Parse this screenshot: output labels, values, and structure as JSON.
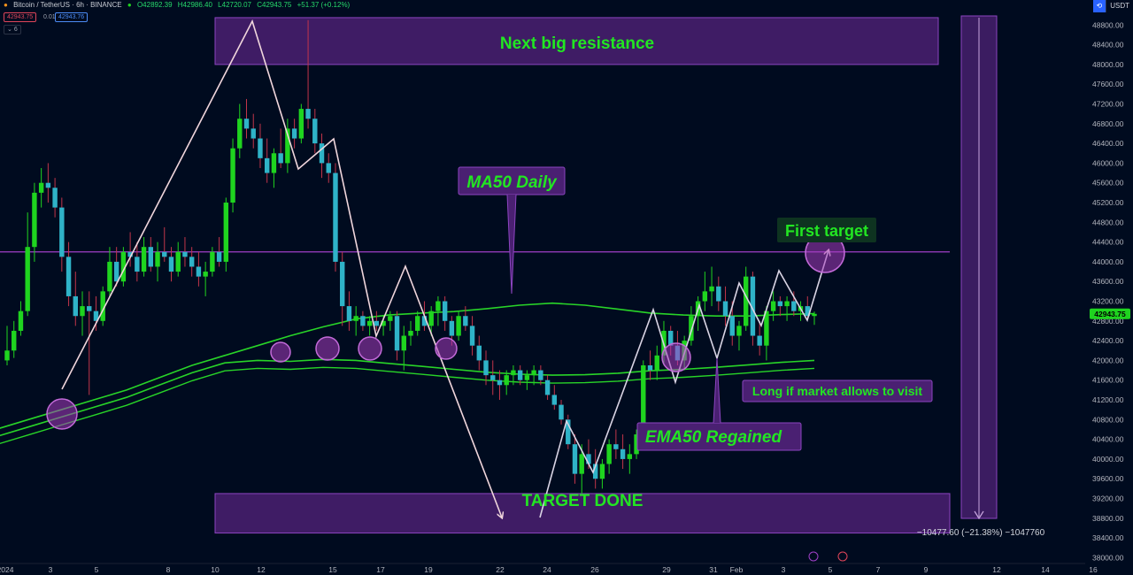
{
  "header": {
    "symbol": "Bitcoin / TetherUS · 6h · BINANCE",
    "ohlc": [
      "O42892.39",
      "H42986.40",
      "L42720.07",
      "C42943.75",
      "+51.37 (+0.12%)"
    ],
    "sell_price": "42943.75",
    "spread": "0.01",
    "buy_price": "42943.76",
    "indicator_count": "6"
  },
  "top_right": {
    "currency": "USDT"
  },
  "colors": {
    "background": "#000b1f",
    "bull_candle": "#1fd41f",
    "bear_candle": "#2fb3c8",
    "box_fill": "#4a2072",
    "box_border": "#8c45c0",
    "label_green": "#22e622",
    "ma_line": "#28d428",
    "drawing_line": "#f0d6dc",
    "circle": "#a63dbe"
  },
  "annotations": {
    "next_resistance": "Next big resistance",
    "target_done": "TARGET DONE",
    "ma50_daily": "MA50 Daily",
    "first_target": "First target",
    "long_visit": "Long if market allows to visit",
    "ema50_regained": "EMA50 Regained",
    "measure": "−10477.60 (−21.38%) −1047760"
  },
  "chart_data": {
    "type": "candlestick",
    "title": "Bitcoin / TetherUS · 6h · BINANCE",
    "price_axis": {
      "ticks": [
        48800,
        48400,
        48000,
        47600,
        47200,
        46800,
        46400,
        46000,
        45600,
        45200,
        44800,
        44400,
        44000,
        43600,
        43200,
        42800,
        42400,
        42000,
        41600,
        41200,
        40800,
        40400,
        40000,
        39600,
        39200,
        38800,
        38400,
        38000
      ],
      "range": [
        37900,
        49200
      ],
      "current_price": 42943.75
    },
    "time_axis": {
      "labels": [
        "2024",
        "3",
        "5",
        "8",
        "10",
        "12",
        "15",
        "17",
        "19",
        "22",
        "24",
        "26",
        "29",
        "31",
        "Feb",
        "3",
        "5",
        "7",
        "9",
        "12",
        "14",
        "16"
      ]
    },
    "last_close": 42943.75,
    "horizontal_level": 44200,
    "resistance_zone": [
      48000,
      48950
    ],
    "target_zone": [
      38500,
      39300
    ],
    "candles_ohlc": [
      [
        42000,
        42700,
        41900,
        42200
      ],
      [
        42200,
        42800,
        42050,
        42600
      ],
      [
        42600,
        43200,
        42500,
        43000
      ],
      [
        43000,
        45000,
        42900,
        44300
      ],
      [
        44300,
        45600,
        44000,
        45400
      ],
      [
        45400,
        45900,
        45100,
        45600
      ],
      [
        45600,
        46000,
        45200,
        45500
      ],
      [
        45500,
        45700,
        44900,
        45100
      ],
      [
        45100,
        45300,
        43800,
        44100
      ],
      [
        44100,
        44400,
        43100,
        43300
      ],
      [
        43300,
        43800,
        42700,
        42900
      ],
      [
        42900,
        43400,
        42500,
        43100
      ],
      [
        43100,
        43400,
        41300,
        43000
      ],
      [
        43000,
        43300,
        42600,
        42800
      ],
      [
        42800,
        43500,
        42700,
        43400
      ],
      [
        43400,
        44300,
        43300,
        44000
      ],
      [
        44000,
        44300,
        43500,
        43600
      ],
      [
        43600,
        44300,
        43500,
        44200
      ],
      [
        44200,
        44600,
        43900,
        44100
      ],
      [
        44100,
        44400,
        43600,
        43800
      ],
      [
        43800,
        44500,
        43700,
        44300
      ],
      [
        44300,
        44500,
        43800,
        43900
      ],
      [
        43900,
        44400,
        43600,
        44200
      ],
      [
        44200,
        44700,
        44000,
        44100
      ],
      [
        44100,
        44300,
        43600,
        43800
      ],
      [
        43800,
        44400,
        43700,
        44200
      ],
      [
        44200,
        44500,
        43900,
        44100
      ],
      [
        44100,
        44300,
        43700,
        43900
      ],
      [
        43900,
        44200,
        43500,
        43700
      ],
      [
        43700,
        44000,
        43300,
        43800
      ],
      [
        43800,
        44300,
        43700,
        44200
      ],
      [
        44200,
        44500,
        43900,
        44000
      ],
      [
        44000,
        45300,
        43800,
        45200
      ],
      [
        45200,
        46500,
        45000,
        46300
      ],
      [
        46300,
        47200,
        46100,
        46900
      ],
      [
        46900,
        47300,
        46500,
        46700
      ],
      [
        46700,
        47000,
        46300,
        46500
      ],
      [
        46500,
        46800,
        45900,
        46100
      ],
      [
        46100,
        46500,
        45600,
        45800
      ],
      [
        45800,
        46300,
        45500,
        46200
      ],
      [
        46200,
        46700,
        45900,
        46000
      ],
      [
        46000,
        46900,
        45800,
        46700
      ],
      [
        46700,
        46900,
        46300,
        46500
      ],
      [
        46500,
        47200,
        46400,
        47100
      ],
      [
        47100,
        48900,
        46700,
        46900
      ],
      [
        46900,
        47100,
        46200,
        46400
      ],
      [
        46400,
        46600,
        45700,
        46000
      ],
      [
        46000,
        46200,
        45600,
        45800
      ],
      [
        45800,
        46000,
        43800,
        44000
      ],
      [
        44000,
        44200,
        42700,
        43100
      ],
      [
        43100,
        43400,
        42600,
        42800
      ],
      [
        42800,
        43100,
        42500,
        42900
      ],
      [
        42900,
        43000,
        42600,
        42700
      ],
      [
        42700,
        42900,
        42500,
        42800
      ],
      [
        42800,
        43000,
        42600,
        42700
      ],
      [
        42700,
        42900,
        42500,
        42800
      ],
      [
        42800,
        43000,
        42600,
        42900
      ],
      [
        42900,
        43000,
        42000,
        42200
      ],
      [
        42200,
        42700,
        41800,
        42500
      ],
      [
        42500,
        42800,
        42300,
        42600
      ],
      [
        42600,
        43000,
        42500,
        42900
      ],
      [
        42900,
        43200,
        42600,
        42700
      ],
      [
        42700,
        43100,
        42500,
        43000
      ],
      [
        43000,
        43300,
        42700,
        43200
      ],
      [
        43200,
        43300,
        42600,
        42800
      ],
      [
        42800,
        42900,
        42300,
        42500
      ],
      [
        42500,
        43000,
        42400,
        42900
      ],
      [
        42900,
        43100,
        42600,
        42700
      ],
      [
        42700,
        42900,
        42100,
        42300
      ],
      [
        42300,
        42500,
        41800,
        42000
      ],
      [
        42000,
        42200,
        41500,
        41700
      ],
      [
        41700,
        42000,
        41300,
        41600
      ],
      [
        41600,
        41800,
        41200,
        41500
      ],
      [
        41500,
        41800,
        41300,
        41700
      ],
      [
        41700,
        41900,
        41500,
        41800
      ],
      [
        41800,
        41900,
        41500,
        41600
      ],
      [
        41600,
        41800,
        41400,
        41700
      ],
      [
        41700,
        41900,
        41500,
        41800
      ],
      [
        41800,
        41900,
        41500,
        41600
      ],
      [
        41600,
        41700,
        41200,
        41300
      ],
      [
        41300,
        41500,
        41000,
        41100
      ],
      [
        41100,
        41200,
        40700,
        40800
      ],
      [
        40800,
        40900,
        40200,
        40300
      ],
      [
        40300,
        40500,
        39500,
        39700
      ],
      [
        39700,
        40300,
        39300,
        40100
      ],
      [
        40100,
        40400,
        39800,
        39900
      ],
      [
        39900,
        40200,
        39400,
        39600
      ],
      [
        39600,
        40000,
        39400,
        39900
      ],
      [
        39900,
        40400,
        39700,
        40300
      ],
      [
        40300,
        40600,
        40000,
        40200
      ],
      [
        40200,
        40500,
        39800,
        40000
      ],
      [
        40000,
        40300,
        39700,
        40100
      ],
      [
        40100,
        40600,
        40000,
        40500
      ],
      [
        40500,
        42000,
        40300,
        41900
      ],
      [
        41900,
        42200,
        41600,
        41800
      ],
      [
        41800,
        42300,
        41600,
        42100
      ],
      [
        42100,
        42800,
        41900,
        42600
      ],
      [
        42600,
        42700,
        42100,
        42300
      ],
      [
        42300,
        42600,
        41900,
        42000
      ],
      [
        42000,
        42500,
        41800,
        42400
      ],
      [
        42400,
        43100,
        42300,
        42900
      ],
      [
        42900,
        43300,
        42600,
        43200
      ],
      [
        43200,
        43800,
        43000,
        43400
      ],
      [
        43400,
        43900,
        43100,
        43500
      ],
      [
        43500,
        43700,
        43000,
        43200
      ],
      [
        43200,
        43500,
        42700,
        42900
      ],
      [
        42900,
        43200,
        42300,
        42500
      ],
      [
        42500,
        42800,
        42200,
        42700
      ],
      [
        42700,
        43900,
        42600,
        43700
      ],
      [
        43700,
        43800,
        42300,
        42500
      ],
      [
        42500,
        42800,
        42100,
        42300
      ],
      [
        42300,
        43100,
        42000,
        43000
      ],
      [
        43000,
        43400,
        42800,
        43200
      ],
      [
        43200,
        43300,
        42900,
        43100
      ],
      [
        43100,
        43300,
        42800,
        43200
      ],
      [
        43200,
        43400,
        42900,
        43000
      ],
      [
        43000,
        43200,
        42800,
        43100
      ],
      [
        43100,
        43300,
        42850,
        42900
      ],
      [
        42900,
        42990,
        42720,
        42944
      ]
    ],
    "ma_lines": [
      {
        "name": "MA50 Daily",
        "values": [
          40600,
          40800,
          41000,
          41200,
          41400,
          41650,
          41900,
          42100,
          42300,
          42500,
          42680,
          42840,
          42920,
          42960,
          42990,
          43050,
          43120,
          43160,
          43120,
          43040,
          42960,
          42920,
          42900,
          42900,
          42930,
          42950
        ]
      },
      {
        "name": "EMA50",
        "values": [
          40450,
          40650,
          40850,
          41050,
          41250,
          41500,
          41750,
          41950,
          42000,
          41980,
          42020,
          42000,
          41940,
          41880,
          41820,
          41760,
          41720,
          41700,
          41710,
          41740,
          41790,
          41820,
          41860,
          41910,
          41960,
          42000
        ]
      }
    ]
  }
}
